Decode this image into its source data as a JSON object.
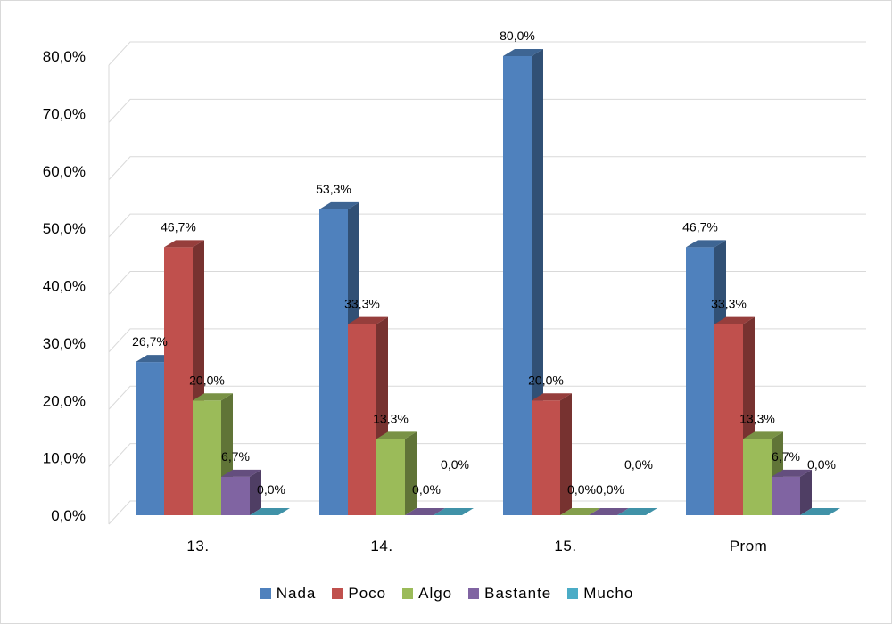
{
  "chart_data": {
    "type": "bar",
    "style": "3d-clustered-column",
    "categories": [
      "13.",
      "14.",
      "15.",
      "Prom"
    ],
    "series": [
      {
        "name": "Nada",
        "color": "#4f81bd",
        "values": [
          26.7,
          53.3,
          80.0,
          46.7
        ],
        "labels": [
          "26,7%",
          "53,3%",
          "80,0%",
          "46,7%"
        ]
      },
      {
        "name": "Poco",
        "color": "#c0504d",
        "values": [
          46.7,
          33.3,
          20.0,
          33.3
        ],
        "labels": [
          "46,7%",
          "33,3%",
          "20,0%",
          "33,3%"
        ]
      },
      {
        "name": "Algo",
        "color": "#9bbb59",
        "values": [
          20.0,
          13.3,
          0.0,
          13.3
        ],
        "labels": [
          "20,0%",
          "13,3%",
          "0,0%",
          "13,3%"
        ]
      },
      {
        "name": "Bastante",
        "color": "#8064a2",
        "values": [
          6.7,
          0.0,
          0.0,
          6.7
        ],
        "labels": [
          "6,7%",
          "0,0%",
          "0,0%",
          "6,7%"
        ]
      },
      {
        "name": "Mucho",
        "color": "#4bacc6",
        "values": [
          0.0,
          0.0,
          0.0,
          0.0
        ],
        "labels": [
          "0,0%",
          "0,0%",
          "0,0%",
          "0,0%"
        ]
      }
    ],
    "yticks": [
      "0,0%",
      "10,0%",
      "20,0%",
      "30,0%",
      "40,0%",
      "50,0%",
      "60,0%",
      "70,0%",
      "80,0%"
    ],
    "ylim": [
      0,
      80
    ],
    "grid": true,
    "legend_position": "bottom"
  }
}
